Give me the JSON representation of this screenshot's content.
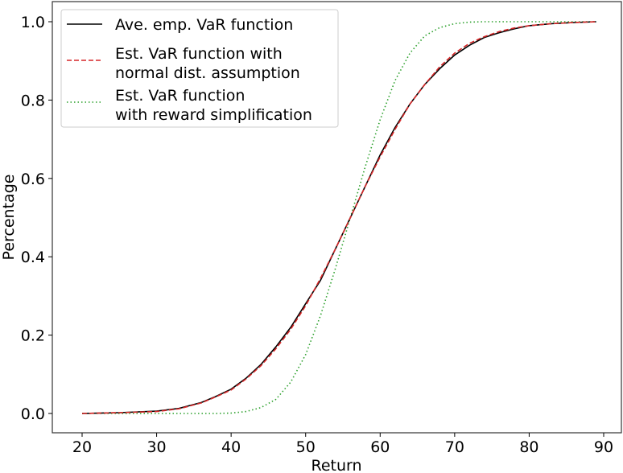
{
  "chart_data": {
    "type": "line",
    "title": "",
    "xlabel": "Return",
    "ylabel": "Percentage",
    "xlim": [
      16.5,
      92.5
    ],
    "ylim": [
      -0.05,
      1.05
    ],
    "xticks": [
      20,
      30,
      40,
      50,
      60,
      70,
      80,
      90
    ],
    "yticks": [
      0.0,
      0.2,
      0.4,
      0.6,
      0.8,
      1.0
    ],
    "xtick_labels": [
      "20",
      "30",
      "40",
      "50",
      "60",
      "70",
      "80",
      "90"
    ],
    "ytick_labels": [
      "0.0",
      "0.2",
      "0.4",
      "0.6",
      "0.8",
      "1.0"
    ],
    "grid": false,
    "legend_position": "upper left",
    "x": [
      20,
      25,
      30,
      33,
      36,
      38,
      40,
      42,
      44,
      46,
      48,
      50,
      52,
      54,
      56,
      58,
      60,
      62,
      64,
      66,
      68,
      70,
      72,
      74,
      76,
      78,
      80,
      83,
      86,
      89
    ],
    "series": [
      {
        "name": "Ave. emp. VaR function",
        "legend_lines": [
          "Ave. emp. VaR function"
        ],
        "color": "#000000",
        "style": "solid",
        "values": [
          0.0,
          0.002,
          0.006,
          0.013,
          0.028,
          0.044,
          0.062,
          0.09,
          0.125,
          0.17,
          0.22,
          0.28,
          0.34,
          0.42,
          0.5,
          0.58,
          0.66,
          0.73,
          0.79,
          0.84,
          0.88,
          0.915,
          0.94,
          0.96,
          0.972,
          0.982,
          0.99,
          0.995,
          0.998,
          1.0
        ]
      },
      {
        "name": "Est. VaR function with normal dist. assumption",
        "legend_lines": [
          "Est. VaR function with",
          "normal dist. assumption"
        ],
        "color": "#d62728",
        "style": "dashed",
        "values": [
          0.0,
          0.002,
          0.005,
          0.012,
          0.027,
          0.043,
          0.06,
          0.088,
          0.122,
          0.165,
          0.215,
          0.275,
          0.345,
          0.42,
          0.5,
          0.58,
          0.655,
          0.725,
          0.79,
          0.84,
          0.885,
          0.92,
          0.945,
          0.962,
          0.975,
          0.984,
          0.99,
          0.995,
          0.998,
          1.0
        ]
      },
      {
        "name": "Est. VaR function with reward simplification",
        "legend_lines": [
          "Est. VaR function",
          "with reward simplification"
        ],
        "color": "#2ca02c",
        "style": "dotted",
        "values": [
          0.0,
          0.0,
          0.0,
          0.0,
          0.0,
          0.0,
          0.001,
          0.005,
          0.015,
          0.036,
          0.08,
          0.15,
          0.25,
          0.37,
          0.5,
          0.63,
          0.75,
          0.85,
          0.92,
          0.964,
          0.985,
          0.995,
          0.999,
          1.0,
          1.0,
          1.0,
          1.0,
          1.0,
          1.0,
          1.0
        ]
      }
    ]
  }
}
